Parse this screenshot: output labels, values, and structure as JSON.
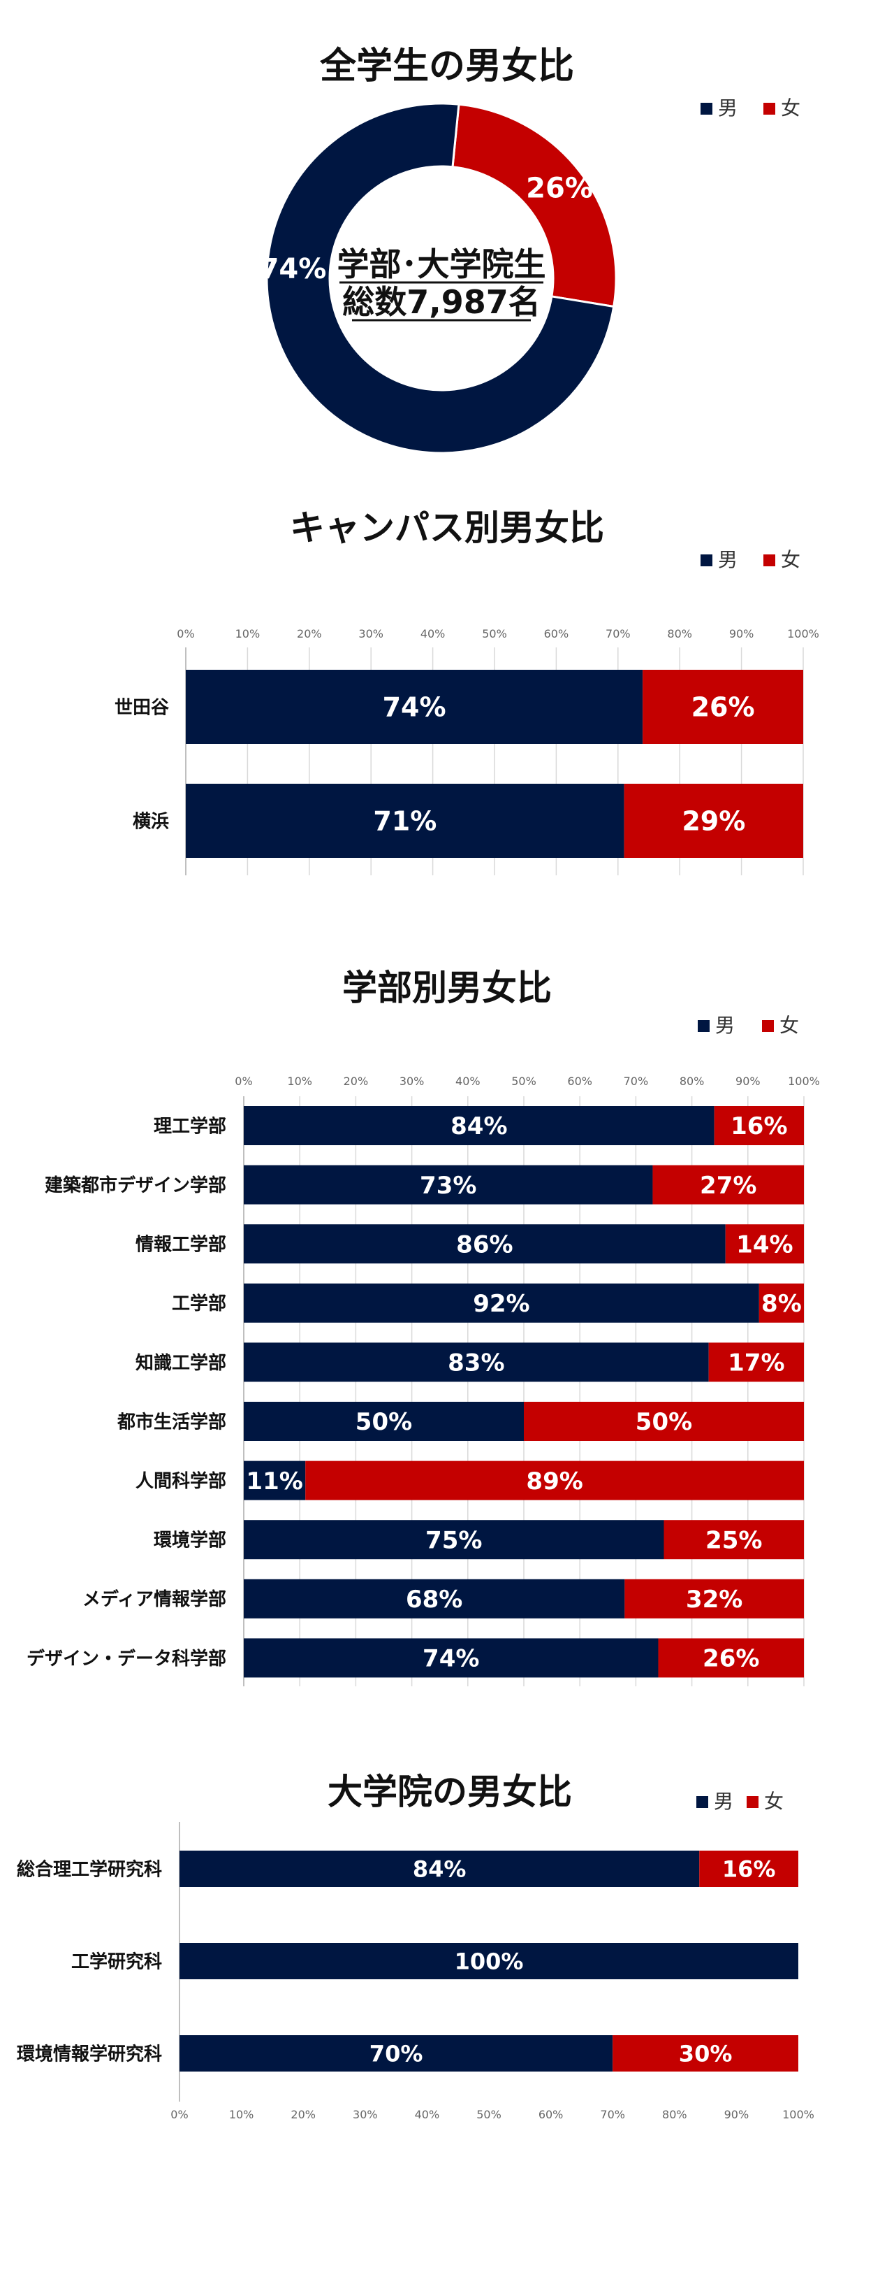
{
  "colors": {
    "male": "#001641",
    "female": "#c40000"
  },
  "chart_data": [
    {
      "type": "pie",
      "title": "全学生の男女比",
      "center_label": [
        "学部･大学院生",
        "総数7,987名"
      ],
      "legend": [
        "男",
        "女"
      ],
      "slices": [
        {
          "name": "女",
          "value": 26,
          "label": "26%"
        },
        {
          "name": "男",
          "value": 74,
          "label": "74%"
        }
      ]
    },
    {
      "type": "bar",
      "title": "キャンパス別男女比",
      "legend": [
        "男",
        "女"
      ],
      "ticks": [
        "0%",
        "10%",
        "20%",
        "30%",
        "40%",
        "50%",
        "60%",
        "70%",
        "80%",
        "90%",
        "100%"
      ],
      "xlim": [
        0,
        100
      ],
      "categories": [
        "世田谷",
        "横浜"
      ],
      "series": [
        {
          "name": "男",
          "values": [
            74,
            71
          ],
          "labels": [
            "74%",
            "71%"
          ]
        },
        {
          "name": "女",
          "values": [
            26,
            29
          ],
          "labels": [
            "26%",
            "29%"
          ]
        }
      ]
    },
    {
      "type": "bar",
      "title": "学部別男女比",
      "legend": [
        "男",
        "女"
      ],
      "ticks": [
        "0%",
        "10%",
        "20%",
        "30%",
        "40%",
        "50%",
        "60%",
        "70%",
        "80%",
        "90%",
        "100%"
      ],
      "xlim": [
        0,
        100
      ],
      "categories": [
        "理工学部",
        "建築都市デザイン学部",
        "情報工学部",
        "工学部",
        "知識工学部",
        "都市生活学部",
        "人間科学部",
        "環境学部",
        "メディア情報学部",
        "デザイン・データ科学部"
      ],
      "series": [
        {
          "name": "男",
          "values": [
            84,
            73,
            86,
            92,
            83,
            50,
            11,
            75,
            68,
            74
          ],
          "labels": [
            "84%",
            "73%",
            "86%",
            "92%",
            "83%",
            "50%",
            "11%",
            "75%",
            "68%",
            "74%"
          ]
        },
        {
          "name": "女",
          "values": [
            16,
            27,
            14,
            8,
            17,
            50,
            89,
            25,
            32,
            26
          ],
          "labels": [
            "16%",
            "27%",
            "14%",
            "8%",
            "17%",
            "50%",
            "89%",
            "25%",
            "32%",
            "26%"
          ]
        }
      ]
    },
    {
      "type": "bar",
      "title": "大学院の男女比",
      "legend": [
        "男",
        "女"
      ],
      "ticks": [
        "0%",
        "10%",
        "20%",
        "30%",
        "40%",
        "50%",
        "60%",
        "70%",
        "80%",
        "90%",
        "100%"
      ],
      "xlim": [
        0,
        100
      ],
      "categories": [
        "総合理工学研究科",
        "工学研究科",
        "環境情報学研究科"
      ],
      "series": [
        {
          "name": "男",
          "values": [
            84,
            100,
            70
          ],
          "labels": [
            "84%",
            "100%",
            "70%"
          ]
        },
        {
          "name": "女",
          "values": [
            16,
            0,
            30
          ],
          "labels": [
            "16%",
            "",
            "30%"
          ]
        }
      ]
    }
  ]
}
